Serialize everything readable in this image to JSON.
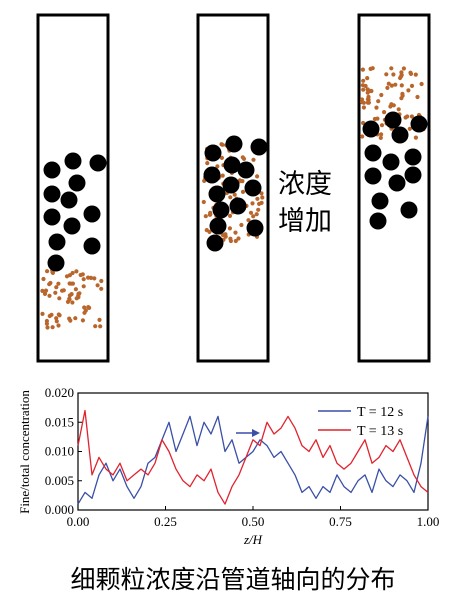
{
  "annotation": {
    "line1": "浓度",
    "line2": "增加"
  },
  "colors": {
    "fine_particles": "#b9662c",
    "coarse_particles": "#000000",
    "series_12": "#3a4fa8",
    "series_13": "#e0232e"
  },
  "caption": "细颗粒浓度沿管道轴向的分布",
  "chart_data": {
    "type": "line",
    "xlabel": "z/H",
    "ylabel": "Fine/total concentration",
    "xlim": [
      0,
      1
    ],
    "ylim": [
      0,
      0.02
    ],
    "xticks": [
      "0.00",
      "0.25",
      "0.50",
      "0.75",
      "1.00"
    ],
    "yticks": [
      "0.000",
      "0.005",
      "0.010",
      "0.015",
      "0.020"
    ],
    "legend_position": "top-right",
    "series": [
      {
        "name": "T = 12 s",
        "x": [
          0,
          0.02,
          0.04,
          0.06,
          0.08,
          0.1,
          0.12,
          0.14,
          0.16,
          0.18,
          0.2,
          0.22,
          0.24,
          0.26,
          0.28,
          0.3,
          0.32,
          0.34,
          0.36,
          0.38,
          0.4,
          0.42,
          0.44,
          0.46,
          0.48,
          0.5,
          0.52,
          0.54,
          0.56,
          0.58,
          0.6,
          0.62,
          0.64,
          0.66,
          0.68,
          0.7,
          0.72,
          0.74,
          0.76,
          0.78,
          0.8,
          0.82,
          0.84,
          0.86,
          0.88,
          0.9,
          0.92,
          0.94,
          0.96,
          0.98,
          1.0
        ],
        "y": [
          0.001,
          0.003,
          0.002,
          0.006,
          0.008,
          0.005,
          0.007,
          0.004,
          0.002,
          0.004,
          0.008,
          0.009,
          0.012,
          0.015,
          0.01,
          0.013,
          0.016,
          0.011,
          0.015,
          0.013,
          0.016,
          0.01,
          0.012,
          0.008,
          0.009,
          0.01,
          0.012,
          0.011,
          0.009,
          0.01,
          0.008,
          0.006,
          0.003,
          0.004,
          0.002,
          0.004,
          0.003,
          0.006,
          0.004,
          0.003,
          0.005,
          0.006,
          0.003,
          0.007,
          0.005,
          0.004,
          0.006,
          0.005,
          0.003,
          0.008,
          0.016
        ]
      },
      {
        "name": "T = 13 s",
        "x": [
          0,
          0.02,
          0.04,
          0.06,
          0.08,
          0.1,
          0.12,
          0.14,
          0.16,
          0.18,
          0.2,
          0.22,
          0.24,
          0.26,
          0.28,
          0.3,
          0.32,
          0.34,
          0.36,
          0.38,
          0.4,
          0.42,
          0.44,
          0.46,
          0.48,
          0.5,
          0.52,
          0.54,
          0.56,
          0.58,
          0.6,
          0.62,
          0.64,
          0.66,
          0.68,
          0.7,
          0.72,
          0.74,
          0.76,
          0.78,
          0.8,
          0.82,
          0.84,
          0.86,
          0.88,
          0.9,
          0.92,
          0.94,
          0.96,
          0.98,
          1.0
        ],
        "y": [
          0.011,
          0.017,
          0.006,
          0.009,
          0.007,
          0.006,
          0.008,
          0.005,
          0.006,
          0.007,
          0.006,
          0.008,
          0.012,
          0.01,
          0.007,
          0.005,
          0.004,
          0.006,
          0.005,
          0.007,
          0.003,
          0.001,
          0.004,
          0.006,
          0.009,
          0.012,
          0.011,
          0.015,
          0.013,
          0.014,
          0.016,
          0.014,
          0.011,
          0.01,
          0.012,
          0.009,
          0.011,
          0.008,
          0.007,
          0.008,
          0.01,
          0.012,
          0.008,
          0.009,
          0.011,
          0.01,
          0.012,
          0.009,
          0.006,
          0.004,
          0.003
        ]
      }
    ]
  }
}
